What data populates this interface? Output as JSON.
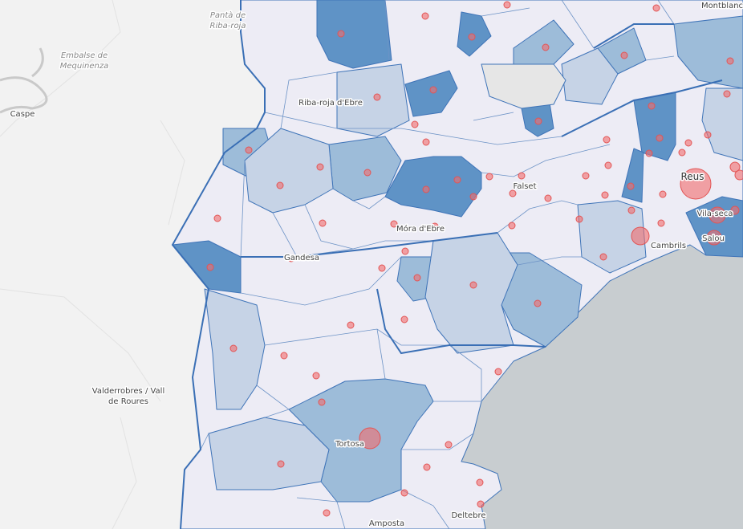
{
  "places": [
    {
      "lines": [
        "Pantà de",
        "Riba-roja"
      ]
    },
    {
      "lines": [
        "Embalse de",
        "Mequinenza"
      ]
    },
    {
      "lines": [
        "Caspe"
      ]
    },
    {
      "lines": [
        "Riba-roja d'Ebre"
      ]
    },
    {
      "lines": [
        "Móra d'Ebre"
      ]
    },
    {
      "lines": [
        "Gandesa"
      ]
    },
    {
      "lines": [
        "Falset"
      ]
    },
    {
      "lines": [
        "Reus"
      ]
    },
    {
      "lines": [
        "Vila-seca"
      ]
    },
    {
      "lines": [
        "Salou"
      ]
    },
    {
      "lines": [
        "Cambrils"
      ]
    },
    {
      "lines": [
        "Montblanc"
      ]
    },
    {
      "lines": [
        "Valderrobres / Vall",
        "de Roures"
      ]
    },
    {
      "lines": [
        "Tortosa"
      ]
    },
    {
      "lines": [
        "Deltebre"
      ]
    },
    {
      "lines": [
        "Amposta"
      ]
    }
  ]
}
